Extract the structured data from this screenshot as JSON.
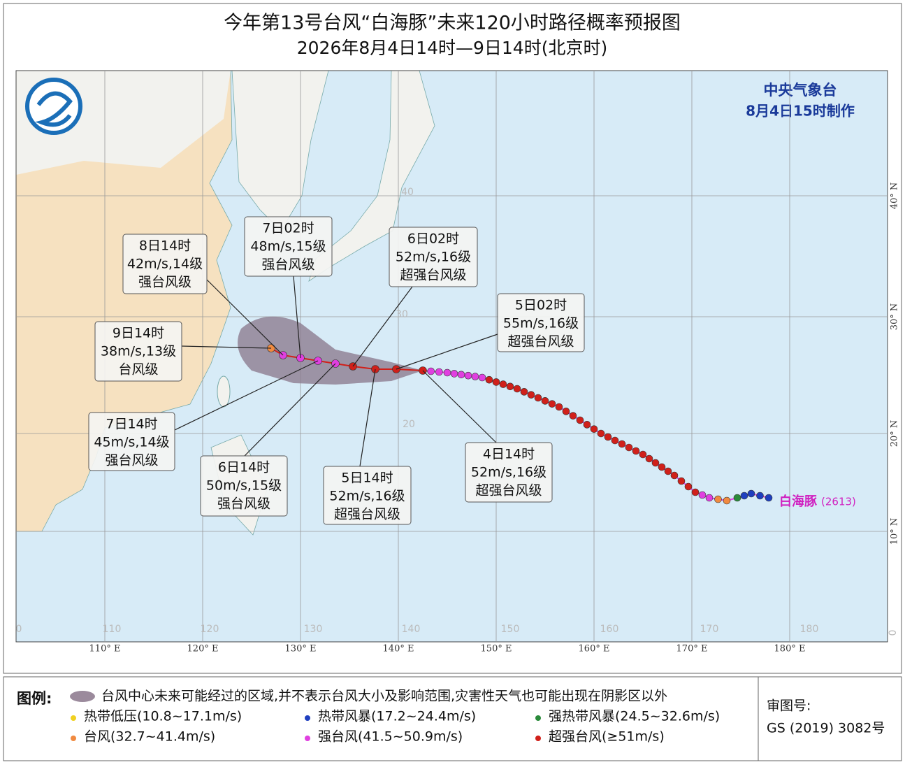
{
  "header": {
    "title": "今年第13号台风“白海豚”未来120小时路径概率预报图",
    "subtitle": "2026年8月4日14时—9日14时(北京时)"
  },
  "agency": {
    "name": "中央气象台",
    "issued": "8月4日15时制作"
  },
  "typhoon_label": {
    "name": "白海豚",
    "code": "(2613)"
  },
  "forecast_labels": [
    {
      "time": "8日14时",
      "wind": "42m/s,14级",
      "grade": "强台风级"
    },
    {
      "time": "7日02时",
      "wind": "48m/s,15级",
      "grade": "强台风级"
    },
    {
      "time": "6日02时",
      "wind": "52m/s,16级",
      "grade": "超强台风级"
    },
    {
      "time": "5日02时",
      "wind": "55m/s,16级",
      "grade": "超强台风级"
    },
    {
      "time": "9日14时",
      "wind": "38m/s,13级",
      "grade": "台风级"
    },
    {
      "time": "7日14时",
      "wind": "45m/s,14级",
      "grade": "强台风级"
    },
    {
      "time": "6日14时",
      "wind": "50m/s,15级",
      "grade": "强台风级"
    },
    {
      "time": "5日14时",
      "wind": "52m/s,16级",
      "grade": "超强台风级"
    },
    {
      "time": "4日14时",
      "wind": "52m/s,16级",
      "grade": "超强台风级"
    }
  ],
  "longitude_labels": [
    "110° E",
    "120° E",
    "130° E",
    "140° E",
    "150° E",
    "160° E",
    "170° E",
    "180° E"
  ],
  "latitude_labels": [
    "40° N",
    "30° N",
    "20° N",
    "10° N"
  ],
  "grid_numbers": {
    "bottom": [
      "0",
      "110",
      "120",
      "130",
      "140",
      "150",
      "160",
      "170",
      "180"
    ],
    "inner": [
      "40",
      "30",
      "20"
    ],
    "right_zero": "0"
  },
  "legend": {
    "title": "图例:",
    "area": "台风中心未来可能经过的区域,并不表示台风大小及影响范围,灾害性天气也可能出现在阴影区以外",
    "items": [
      "热带低压(10.8~17.1m/s)",
      "热带风暴(17.2~24.4m/s)",
      "强热带风暴(24.5~32.6m/s)",
      "台风(32.7~41.4m/s)",
      "强台风(41.5~50.9m/s)",
      "超强台风(≥51m/s)"
    ]
  },
  "review": {
    "label": "审图号:",
    "number": "GS (2019) 3082号"
  }
}
